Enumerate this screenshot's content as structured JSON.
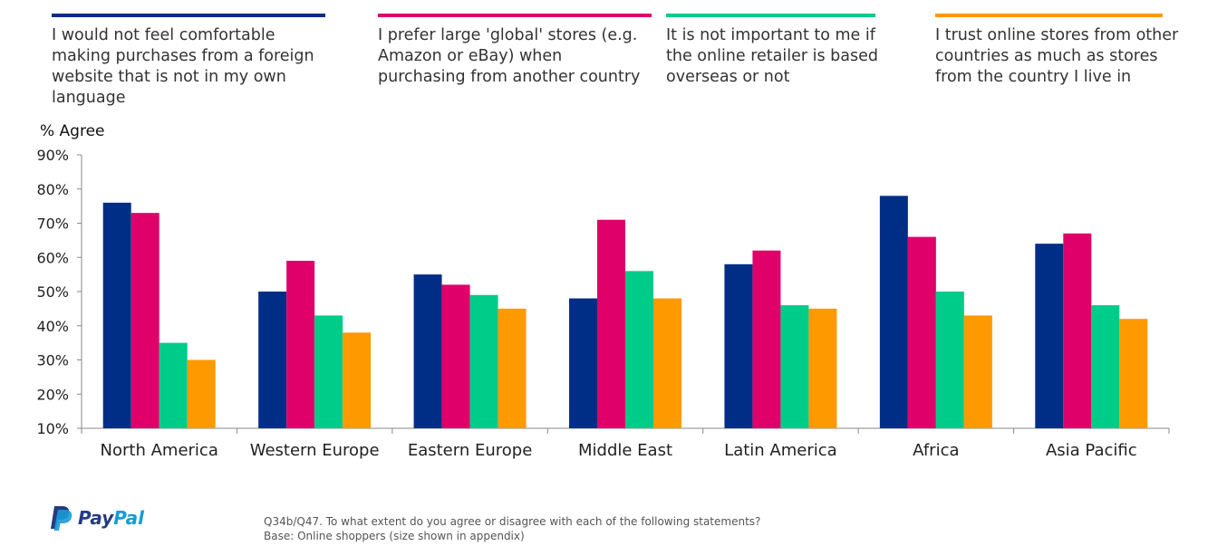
{
  "legend": [
    {
      "label": "I would not feel comfortable making purchases from a foreign website that is not in my own language",
      "color": "#002E87"
    },
    {
      "label": "I prefer large 'global' stores (e.g. Amazon or eBay) when purchasing from another country",
      "color": "#E0006A"
    },
    {
      "label": "It is not important to me if the online retailer is based overseas or not",
      "color": "#00CC8A"
    },
    {
      "label": "I trust online stores from other countries as much as stores from the country I live in",
      "color": "#FF9900"
    }
  ],
  "chart_data": {
    "type": "bar",
    "title": "",
    "xlabel": "",
    "ylabel": "% Agree",
    "ylim": [
      10,
      90
    ],
    "yticks": [
      "10%",
      "20%",
      "30%",
      "40%",
      "50%",
      "60%",
      "70%",
      "80%",
      "90%"
    ],
    "grid": false,
    "legend_position": "top",
    "categories": [
      "North America",
      "Western Europe",
      "Eastern Europe",
      "Middle East",
      "Latin America",
      "Africa",
      "Asia Pacific"
    ],
    "series": [
      {
        "name": "I would not feel comfortable making purchases from a foreign website that is not in my own language",
        "color": "#002E87",
        "values": [
          76,
          50,
          55,
          48,
          58,
          78,
          64
        ]
      },
      {
        "name": "I prefer large 'global' stores (e.g. Amazon or eBay) when purchasing from another country",
        "color": "#E0006A",
        "values": [
          73,
          59,
          52,
          71,
          62,
          66,
          67
        ]
      },
      {
        "name": "It is not important to me if the online retailer is based overseas or not",
        "color": "#00CC8A",
        "values": [
          35,
          43,
          49,
          56,
          46,
          50,
          46
        ]
      },
      {
        "name": "I trust online stores from other countries as much as stores from the country I live in",
        "color": "#FF9900",
        "values": [
          30,
          38,
          45,
          48,
          45,
          43,
          42
        ]
      }
    ]
  },
  "brand": {
    "pay": "Pay",
    "pal": "Pal",
    "icon": "paypal-logo-icon",
    "color_dark": "#253B80",
    "color_light": "#179BD7"
  },
  "footnote": {
    "line1": "Q34b/Q47. To what extent do you agree or disagree with each of the following statements?",
    "line2": "Base: Online shoppers (size shown in appendix)"
  }
}
